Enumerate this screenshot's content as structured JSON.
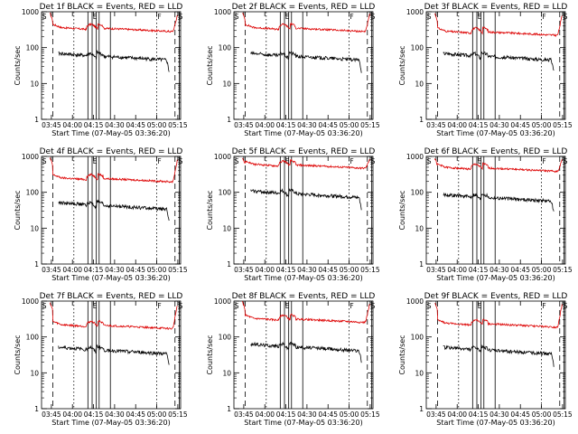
{
  "chart_data": {
    "type": "line",
    "layout": "3x3 grid of panels",
    "ylabel": "Counts/sec",
    "xlabel": "Start Time (07-May-05 03:36:20)",
    "y_scale": "log",
    "ylim": [
      1,
      1000
    ],
    "y_ticks": [
      "1",
      "10",
      "100",
      "1000"
    ],
    "xlim": [
      "03:38",
      "05:17"
    ],
    "x_ticks": [
      "03:45",
      "04:00",
      "04:15",
      "04:30",
      "04:45",
      "05:00",
      "05:15"
    ],
    "x_tick_minutes": [
      225,
      240,
      255,
      270,
      285,
      300,
      315
    ],
    "flag_labels": [
      "S",
      "E",
      "F",
      "S"
    ],
    "series_colors": {
      "events": "#000000",
      "lld": "#dd0000"
    },
    "panels": [
      {
        "title": "Det 1f BLACK = Events, RED = LLD",
        "events_level": 60,
        "lld_level": 330,
        "lld_peak": 900
      },
      {
        "title": "Det 2f BLACK = Events, RED = LLD",
        "events_level": 60,
        "lld_level": 330,
        "lld_peak": 950
      },
      {
        "title": "Det 3f BLACK = Events, RED = LLD",
        "events_level": 60,
        "lld_level": 260,
        "lld_peak": 900
      },
      {
        "title": "Det 4f BLACK = Events, RED = LLD",
        "events_level": 45,
        "lld_level": 230,
        "lld_peak": 900
      },
      {
        "title": "Det 5f BLACK = Events, RED = LLD",
        "events_level": 95,
        "lld_level": 550,
        "lld_peak": 950
      },
      {
        "title": "Det 6f BLACK = Events, RED = LLD",
        "events_level": 75,
        "lld_level": 450,
        "lld_peak": 900
      },
      {
        "title": "Det 7f BLACK = Events, RED = LLD",
        "events_level": 45,
        "lld_level": 200,
        "lld_peak": 900
      },
      {
        "title": "Det 8f BLACK = Events, RED = LLD",
        "events_level": 55,
        "lld_level": 300,
        "lld_peak": 950
      },
      {
        "title": "Det 9f BLACK = Events, RED = LLD",
        "events_level": 45,
        "lld_level": 220,
        "lld_peak": 900
      }
    ]
  }
}
